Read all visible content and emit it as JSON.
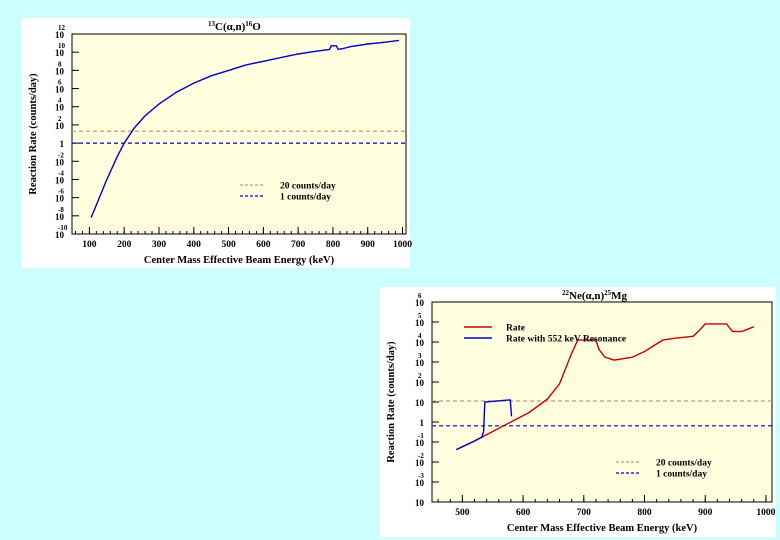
{
  "colors": {
    "background": "#ccffff",
    "panel": "#ffffff",
    "plot_area": "#ffffe0",
    "rate": "#cc0000",
    "resonance": "#0000cc",
    "line_20": "#cc9966",
    "line_1": "#0000cc"
  },
  "chart_data": [
    {
      "type": "line",
      "title_super_a": "13",
      "title_mid": "C(α,n)",
      "title_super_b": "16",
      "title_end": "O",
      "xlabel": "Center Mass Effective Beam Energy (keV)",
      "ylabel": "Reaction Rate (counts/day)",
      "xlim": [
        50,
        1010
      ],
      "ylim_log10": [
        -10,
        12
      ],
      "x_ticks": [
        "100",
        "200",
        "300",
        "400",
        "500",
        "600",
        "700",
        "800",
        "900",
        "1000"
      ],
      "y_ticks": [
        {
          "base": "10",
          "exp": "12"
        },
        {
          "base": "10",
          "exp": "10"
        },
        {
          "base": "10",
          "exp": "8"
        },
        {
          "base": "10",
          "exp": "6"
        },
        {
          "base": "10",
          "exp": "4"
        },
        {
          "base": "10",
          "exp": "2"
        },
        {
          "base": "1",
          "exp": ""
        },
        {
          "base": "10",
          "exp": "-2"
        },
        {
          "base": "10",
          "exp": "-4"
        },
        {
          "base": "10",
          "exp": "-6"
        },
        {
          "base": "10",
          "exp": "-8"
        },
        {
          "base": "10",
          "exp": "-10"
        }
      ],
      "legend": [
        {
          "label": "20 counts/day",
          "style": "dashed",
          "color": "#cc9966"
        },
        {
          "label": "1 counts/day",
          "style": "dashed",
          "color": "#0000cc"
        }
      ],
      "hlines": [
        {
          "value": 20,
          "color": "#cc9966"
        },
        {
          "value": 1,
          "color": "#0000cc"
        }
      ],
      "series": [
        {
          "name": "Rate",
          "color": "#0000cc",
          "x": [
            105,
            120,
            150,
            180,
            200,
            230,
            260,
            300,
            350,
            400,
            450,
            500,
            550,
            600,
            650,
            700,
            750,
            790,
            795,
            800,
            810,
            815,
            820,
            830,
            850,
            900,
            950,
            990
          ],
          "log10": [
            -8.2,
            -6.8,
            -4.0,
            -1.5,
            0.0,
            1.7,
            3.0,
            4.3,
            5.6,
            6.6,
            7.4,
            8.0,
            8.6,
            9.0,
            9.4,
            9.8,
            10.1,
            10.3,
            10.7,
            10.7,
            10.7,
            10.3,
            10.35,
            10.4,
            10.6,
            10.9,
            11.1,
            11.3
          ]
        }
      ]
    },
    {
      "type": "line",
      "title_super_a": "22",
      "title_mid": "Ne(α,n)",
      "title_super_b": "25",
      "title_end": "Mg",
      "xlabel": "Center Mass Effective Beam Energy (keV)",
      "ylabel": "Reaction Rate (counts/day)",
      "xlim": [
        450,
        1010
      ],
      "ylim_log10": [
        -4,
        6.5
      ],
      "x_ticks": [
        "500",
        "600",
        "700",
        "800",
        "900",
        "1000"
      ],
      "y_ticks": [
        {
          "base": "10",
          "exp": "6"
        },
        {
          "base": "10",
          "exp": "5"
        },
        {
          "base": "10",
          "exp": "4"
        },
        {
          "base": "10",
          "exp": "3"
        },
        {
          "base": "10",
          "exp": "2"
        },
        {
          "base": "10",
          "exp": ""
        },
        {
          "base": "1",
          "exp": ""
        },
        {
          "base": "10",
          "exp": "-1"
        },
        {
          "base": "10",
          "exp": "-2"
        },
        {
          "base": "10",
          "exp": "-3"
        },
        {
          "base": "10",
          "exp": ""
        }
      ],
      "legend": [
        {
          "label": "20 counts/day",
          "style": "dashed",
          "color": "#cc9966"
        },
        {
          "label": "1 counts/day",
          "style": "dashed",
          "color": "#0000cc"
        }
      ],
      "series_legend": [
        {
          "label": "Rate",
          "color": "#cc0000"
        },
        {
          "label": "Rate with 552 keV Resonance",
          "color": "#0000cc"
        }
      ],
      "hlines": [
        {
          "value": 20,
          "color": "#cc9966"
        },
        {
          "value": 1,
          "color": "#0000cc"
        }
      ],
      "series": [
        {
          "name": "Rate",
          "color": "#cc0000",
          "x": [
            490,
            520,
            550,
            580,
            610,
            640,
            660,
            680,
            690,
            720,
            725,
            735,
            750,
            780,
            800,
            830,
            850,
            880,
            890,
            900,
            920,
            935,
            945,
            960,
            980
          ],
          "log10": [
            -1.25,
            -0.8,
            -0.3,
            0.2,
            0.7,
            1.4,
            2.2,
            3.8,
            4.5,
            4.5,
            4.0,
            3.6,
            3.45,
            3.6,
            3.9,
            4.5,
            4.6,
            4.7,
            5.0,
            5.35,
            5.35,
            5.35,
            4.95,
            4.95,
            5.2
          ]
        },
        {
          "name": "Rate with 552 keV Resonance",
          "color": "#0000cc",
          "x": [
            490,
            520,
            532,
            535,
            537,
            575,
            579,
            581
          ],
          "log10": [
            -1.25,
            -0.8,
            -0.6,
            -0.3,
            1.25,
            1.35,
            1.35,
            0.5
          ]
        }
      ]
    }
  ]
}
